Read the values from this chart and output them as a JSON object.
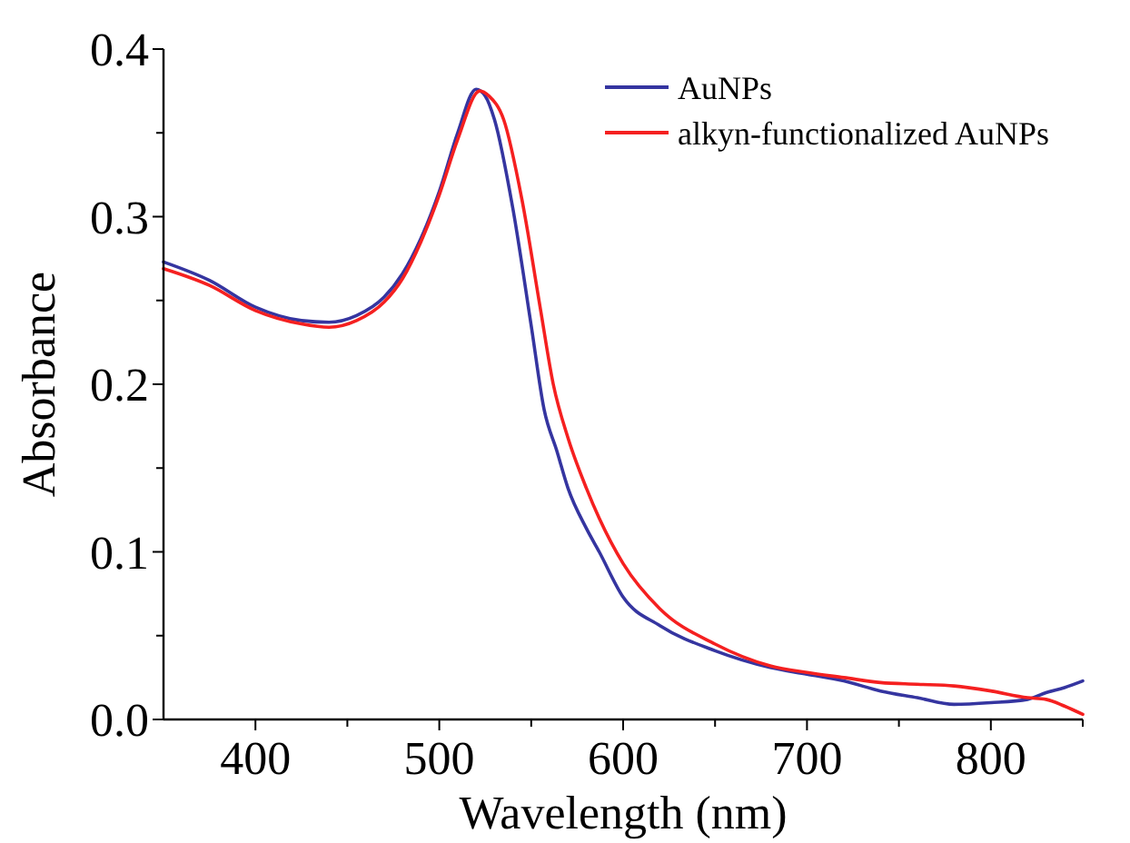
{
  "chart_data": {
    "type": "line",
    "xlabel": "Wavelength (nm)",
    "ylabel": "Absorbance",
    "xlim": [
      350,
      850
    ],
    "ylim": [
      0,
      0.4
    ],
    "xticks": [
      400,
      {
        "value": 450,
        "label": null
      },
      500,
      {
        "value": 550,
        "label": null
      },
      600,
      {
        "value": 650,
        "label": null
      },
      700,
      {
        "value": 750,
        "label": null
      },
      800,
      {
        "value": 850,
        "label": null
      }
    ],
    "yticks": [
      {
        "value": 0,
        "label": "0.0"
      },
      {
        "value": 0.05,
        "label": null
      },
      0.1,
      {
        "value": 0.15,
        "label": null
      },
      0.2,
      {
        "value": 0.25,
        "label": null
      },
      0.3,
      {
        "value": 0.35,
        "label": null
      },
      0.4
    ],
    "legend": "top right",
    "grid": false,
    "series": [
      {
        "name": "AuNPs",
        "color": "#3535a0",
        "x": [
          350,
          375,
          400,
          425,
          440,
          455,
          470,
          480,
          490,
          500,
          510,
          520,
          525,
          530,
          540,
          550,
          557,
          564,
          570,
          580,
          587,
          600,
          620,
          650,
          680,
          700,
          720,
          740,
          760,
          780,
          800,
          820,
          830,
          840,
          850
        ],
        "values": [
          0.273,
          0.262,
          0.246,
          0.238,
          0.237,
          0.241,
          0.252,
          0.266,
          0.287,
          0.315,
          0.35,
          0.376,
          0.372,
          0.358,
          0.305,
          0.235,
          0.185,
          0.16,
          0.138,
          0.114,
          0.1,
          0.073,
          0.056,
          0.041,
          0.031,
          0.027,
          0.023,
          0.017,
          0.013,
          0.009,
          0.01,
          0.012,
          0.016,
          0.019,
          0.023
        ]
      },
      {
        "name": "alkyn-functionalized AuNPs",
        "color": "#f52020",
        "x": [
          350,
          375,
          400,
          425,
          440,
          455,
          470,
          480,
          490,
          500,
          510,
          522,
          527,
          535,
          545,
          555,
          562,
          570,
          580,
          587,
          600,
          620,
          650,
          680,
          700,
          720,
          740,
          760,
          780,
          800,
          820,
          830,
          840,
          850
        ],
        "values": [
          0.269,
          0.259,
          0.244,
          0.236,
          0.234,
          0.238,
          0.249,
          0.263,
          0.285,
          0.313,
          0.346,
          0.375,
          0.372,
          0.358,
          0.31,
          0.245,
          0.2,
          0.168,
          0.138,
          0.12,
          0.093,
          0.066,
          0.045,
          0.032,
          0.028,
          0.025,
          0.022,
          0.021,
          0.02,
          0.017,
          0.013,
          0.012,
          0.008,
          0.003
        ]
      }
    ]
  }
}
